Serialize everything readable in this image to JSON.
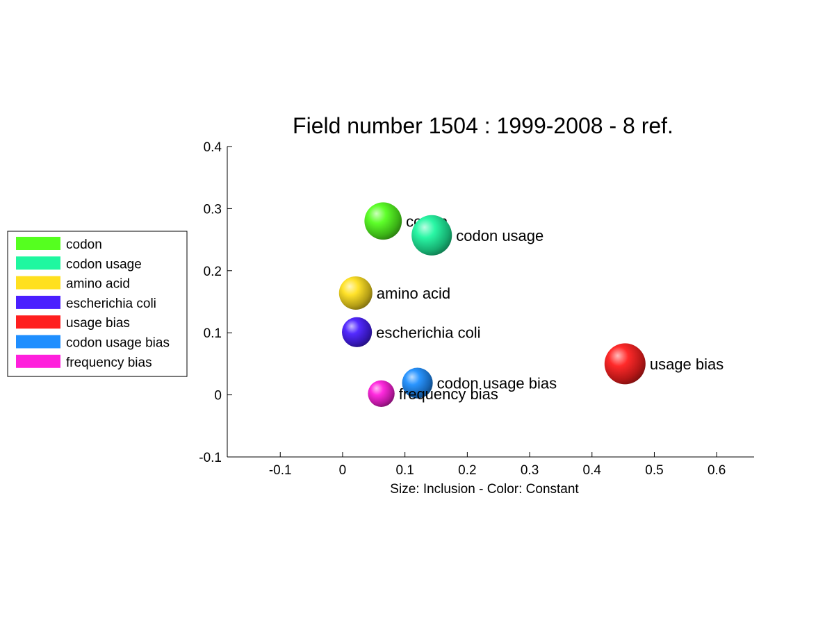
{
  "chart_data": {
    "type": "scatter",
    "title": "Field number 1504 : 1999-2008  - 8 ref.",
    "xlabel": "Size: Inclusion - Color: Constant",
    "ylabel": "",
    "xlim": [
      -0.185,
      0.66
    ],
    "ylim": [
      -0.1,
      0.4
    ],
    "xticks": [
      -0.1,
      0,
      0.1,
      0.2,
      0.3,
      0.4,
      0.5,
      0.6
    ],
    "yticks": [
      -0.1,
      0,
      0.1,
      0.2,
      0.3,
      0.4
    ],
    "xtick_labels": [
      "-0.1",
      "0",
      "0.1",
      "0.2",
      "0.3",
      "0.4",
      "0.5",
      "0.6"
    ],
    "ytick_labels": [
      "-0.1",
      "0",
      "0.1",
      "0.2",
      "0.3",
      "0.4"
    ],
    "grid": false,
    "legend_position": "left",
    "size_encoding": "Inclusion",
    "color_encoding": "Constant",
    "points": [
      {
        "label": "codon",
        "x": 0.065,
        "y": 0.28,
        "size": 1.12,
        "color": "#55ff1f"
      },
      {
        "label": "codon usage",
        "x": 0.143,
        "y": 0.257,
        "size": 1.21,
        "color": "#1ff7a0"
      },
      {
        "label": "amino acid",
        "x": 0.021,
        "y": 0.164,
        "size": 1.0,
        "color": "#ffe01f"
      },
      {
        "label": "escherichia coli",
        "x": 0.023,
        "y": 0.101,
        "size": 0.9,
        "color": "#4a1fff"
      },
      {
        "label": "usage bias",
        "x": 0.453,
        "y": 0.05,
        "size": 1.23,
        "color": "#ff1f1f"
      },
      {
        "label": "codon usage bias",
        "x": 0.12,
        "y": 0.019,
        "size": 0.92,
        "color": "#1f8fff"
      },
      {
        "label": "frequency bias",
        "x": 0.062,
        "y": 0.002,
        "size": 0.8,
        "color": "#ff1fdc"
      }
    ]
  }
}
